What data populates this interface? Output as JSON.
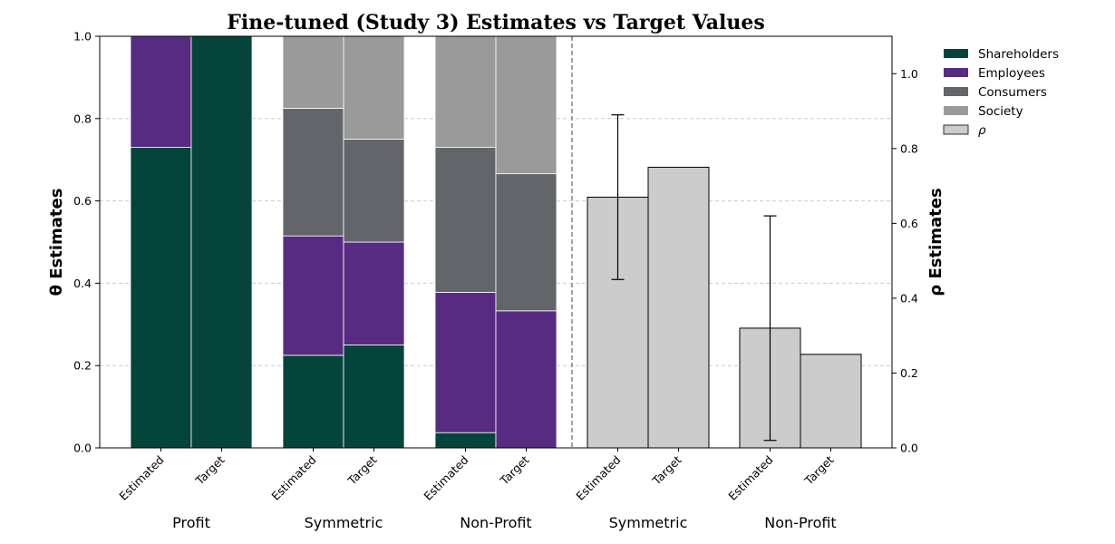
{
  "chart_data": {
    "type": "bar",
    "title": "Fine-tuned (Study 3) Estimates vs Target Values",
    "left_axis": {
      "label": "θ Estimates",
      "ylim": [
        0,
        1.0
      ],
      "ticks": [
        "0.0",
        "0.2",
        "0.4",
        "0.6",
        "0.8",
        "1.0"
      ]
    },
    "right_axis": {
      "label": "ρ Estimates",
      "ylim": [
        0,
        1.1
      ],
      "ticks": [
        "0.0",
        "0.2",
        "0.4",
        "0.6",
        "0.8",
        "1.0"
      ]
    },
    "grid": "horizontal dashed",
    "legend_position": "upper-right, outside plot",
    "series_colors": {
      "Shareholders": "#05443a",
      "Employees": "#572b82",
      "Consumers": "#62666a",
      "Society": "#9a9a9a",
      "rho": "#cccccc"
    },
    "theta_groups": [
      {
        "group": "Profit",
        "bars": [
          {
            "label": "Estimated",
            "Shareholders": 0.73,
            "Employees": 0.27,
            "Consumers": 0.0,
            "Society": 0.0
          },
          {
            "label": "Target",
            "Shareholders": 1.0,
            "Employees": 0.0,
            "Consumers": 0.0,
            "Society": 0.0
          }
        ]
      },
      {
        "group": "Symmetric",
        "bars": [
          {
            "label": "Estimated",
            "Shareholders": 0.225,
            "Employees": 0.29,
            "Consumers": 0.31,
            "Society": 0.175
          },
          {
            "label": "Target",
            "Shareholders": 0.25,
            "Employees": 0.25,
            "Consumers": 0.25,
            "Society": 0.25
          }
        ]
      },
      {
        "group": "Non-Profit",
        "bars": [
          {
            "label": "Estimated",
            "Shareholders": 0.037,
            "Employees": 0.341,
            "Consumers": 0.352,
            "Society": 0.27
          },
          {
            "label": "Target",
            "Shareholders": 0.0,
            "Employees": 0.333,
            "Consumers": 0.333,
            "Society": 0.334
          }
        ]
      }
    ],
    "rho_groups": [
      {
        "group": "Symmetric",
        "bars": [
          {
            "label": "Estimated",
            "value": 0.67,
            "err_low": 0.45,
            "err_high": 0.89
          },
          {
            "label": "Target",
            "value": 0.75
          }
        ]
      },
      {
        "group": "Non-Profit",
        "bars": [
          {
            "label": "Estimated",
            "value": 0.32,
            "err_low": 0.02,
            "err_high": 0.62
          },
          {
            "label": "Target",
            "value": 0.25
          }
        ]
      }
    ],
    "legend": [
      {
        "name": "Shareholders",
        "color": "#05443a"
      },
      {
        "name": "Employees",
        "color": "#572b82"
      },
      {
        "name": "Consumers",
        "color": "#62666a"
      },
      {
        "name": "Society",
        "color": "#9a9a9a"
      },
      {
        "name": "ρ",
        "color": "#cccccc"
      }
    ]
  }
}
